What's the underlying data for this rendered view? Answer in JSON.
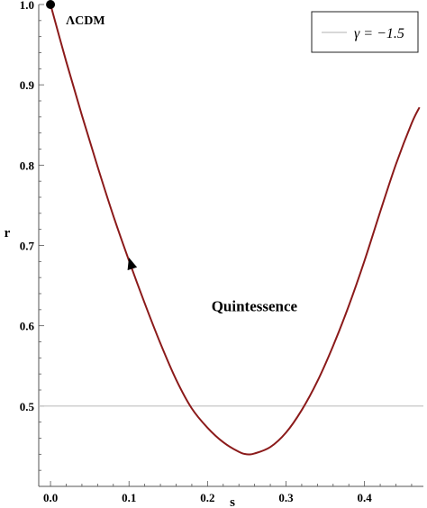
{
  "chart_data": {
    "type": "line",
    "xlabel": "s",
    "ylabel": "r",
    "xlim": [
      -0.015,
      0.475
    ],
    "ylim": [
      0.4,
      1.0
    ],
    "x_ticks": [
      "0.0",
      "0.1",
      "0.2",
      "0.3",
      "0.4"
    ],
    "y_ticks": [
      "0.5",
      "0.6",
      "0.7",
      "0.8",
      "0.9",
      "1.0"
    ],
    "x_tick_values": [
      0.0,
      0.1,
      0.2,
      0.3,
      0.4
    ],
    "y_tick_values": [
      0.5,
      0.6,
      0.7,
      0.8,
      0.9,
      1.0
    ],
    "grid": false,
    "series": [
      {
        "color": "#8b1a1a",
        "x": [
          0.0,
          0.02,
          0.04,
          0.06,
          0.08,
          0.1,
          0.12,
          0.14,
          0.16,
          0.18,
          0.2,
          0.22,
          0.24,
          0.25,
          0.26,
          0.28,
          0.3,
          0.32,
          0.34,
          0.36,
          0.38,
          0.4,
          0.42,
          0.44,
          0.46,
          0.47
        ],
        "y": [
          1.0,
          0.929,
          0.862,
          0.798,
          0.737,
          0.681,
          0.628,
          0.578,
          0.533,
          0.497,
          0.473,
          0.455,
          0.443,
          0.44,
          0.441,
          0.449,
          0.467,
          0.495,
          0.531,
          0.575,
          0.625,
          0.681,
          0.742,
          0.801,
          0.852,
          0.872
        ]
      },
      {
        "name": "γ = −1.5",
        "color": "#c0c0c0",
        "x": [
          -0.015,
          0.475
        ],
        "y": [
          0.5,
          0.5
        ]
      }
    ],
    "legend": {
      "label": "γ = −1.5",
      "placement": "top-right"
    },
    "annotations": [
      {
        "text": "ΛCDM",
        "x": 0.0,
        "y": 1.0
      },
      {
        "text": "Quintessence",
        "x": 0.205,
        "y": 0.625
      }
    ],
    "marker_point": {
      "x": 0.0,
      "y": 1.0
    },
    "arrow": {
      "x": 0.102,
      "y": 0.678
    }
  }
}
